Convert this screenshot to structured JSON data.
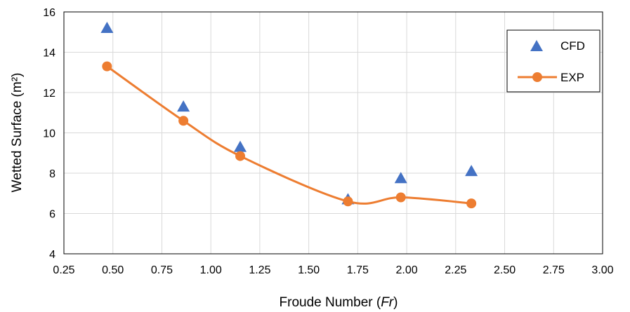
{
  "chart_data": {
    "type": "scatter",
    "xlabel": "Froude Number (Fr)",
    "xlabel_parts": {
      "before": "Froude Number (",
      "italic": "Fr",
      "after": ")"
    },
    "ylabel": "Wetted Surface (m²)",
    "xlim": [
      0.25,
      3.0
    ],
    "ylim": [
      4,
      16
    ],
    "x_ticks": [
      "0.25",
      "0.50",
      "0.75",
      "1.00",
      "1.25",
      "1.50",
      "1.75",
      "2.00",
      "2.25",
      "2.50",
      "2.75",
      "3.00"
    ],
    "y_ticks": [
      "4",
      "6",
      "8",
      "10",
      "12",
      "14",
      "16"
    ],
    "grid": true,
    "legend_position": "top-right",
    "series": [
      {
        "name": "CFD",
        "style": "markers",
        "marker": "triangle",
        "color": "#4472C4",
        "x": [
          0.47,
          0.86,
          1.15,
          1.7,
          1.97,
          2.33
        ],
        "y": [
          15.2,
          11.3,
          9.3,
          6.7,
          7.75,
          8.1
        ]
      },
      {
        "name": "EXP",
        "style": "smooth-line-markers",
        "marker": "circle",
        "color": "#ED7D31",
        "x": [
          0.47,
          0.86,
          1.15,
          1.7,
          1.97,
          2.33
        ],
        "y": [
          13.3,
          10.6,
          8.85,
          6.6,
          6.8,
          6.5
        ]
      }
    ]
  }
}
